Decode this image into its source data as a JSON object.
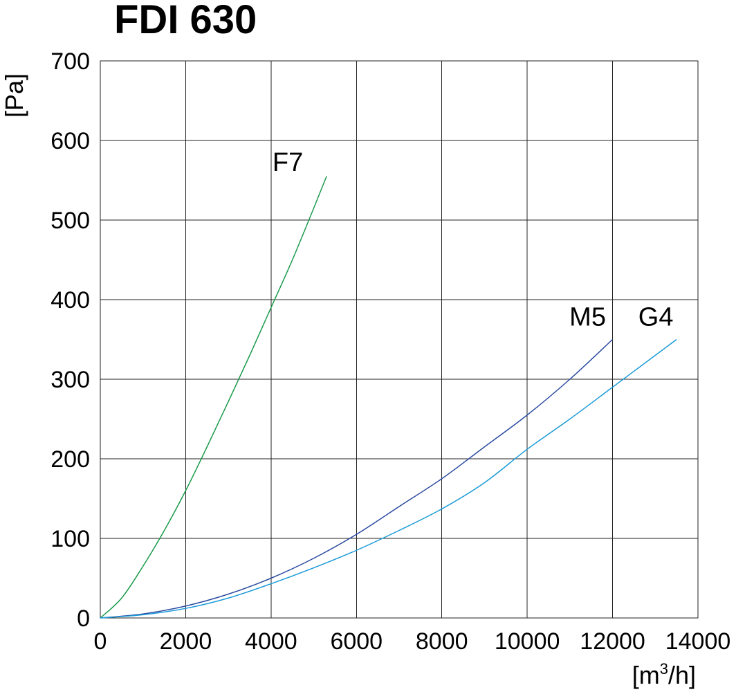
{
  "chart_data": {
    "type": "line",
    "title": "FDI 630",
    "xlabel": "[m³/h]",
    "xlabel_main": "[m",
    "xlabel_sup": "3",
    "xlabel_tail": "/h]",
    "ylabel": "[Pa]",
    "xlim": [
      0,
      14000
    ],
    "ylim": [
      0,
      700
    ],
    "xticks": [
      0,
      2000,
      4000,
      6000,
      8000,
      10000,
      12000,
      14000
    ],
    "yticks": [
      0,
      100,
      200,
      300,
      400,
      500,
      600,
      700
    ],
    "grid": true,
    "series": [
      {
        "name": "F7",
        "color": "#1a9a4a",
        "points": [
          [
            0,
            0
          ],
          [
            500,
            25
          ],
          [
            1000,
            65
          ],
          [
            1500,
            110
          ],
          [
            2000,
            160
          ],
          [
            2500,
            215
          ],
          [
            3000,
            272
          ],
          [
            3500,
            330
          ],
          [
            4000,
            390
          ],
          [
            4500,
            450
          ],
          [
            5000,
            515
          ],
          [
            5300,
            555
          ]
        ]
      },
      {
        "name": "M5",
        "color": "#2a4aa0",
        "points": [
          [
            0,
            0
          ],
          [
            1000,
            5
          ],
          [
            2000,
            15
          ],
          [
            3000,
            30
          ],
          [
            4000,
            50
          ],
          [
            5000,
            75
          ],
          [
            6000,
            105
          ],
          [
            7000,
            140
          ],
          [
            8000,
            175
          ],
          [
            9000,
            215
          ],
          [
            10000,
            255
          ],
          [
            11000,
            300
          ],
          [
            12000,
            350
          ]
        ]
      },
      {
        "name": "G4",
        "color": "#1a9ad8",
        "points": [
          [
            0,
            0
          ],
          [
            1000,
            4
          ],
          [
            2000,
            12
          ],
          [
            3000,
            25
          ],
          [
            4000,
            43
          ],
          [
            5000,
            63
          ],
          [
            6000,
            85
          ],
          [
            7000,
            110
          ],
          [
            8000,
            137
          ],
          [
            9000,
            170
          ],
          [
            10000,
            212
          ],
          [
            11000,
            250
          ],
          [
            12000,
            290
          ],
          [
            13000,
            330
          ],
          [
            13500,
            350
          ]
        ]
      }
    ]
  }
}
